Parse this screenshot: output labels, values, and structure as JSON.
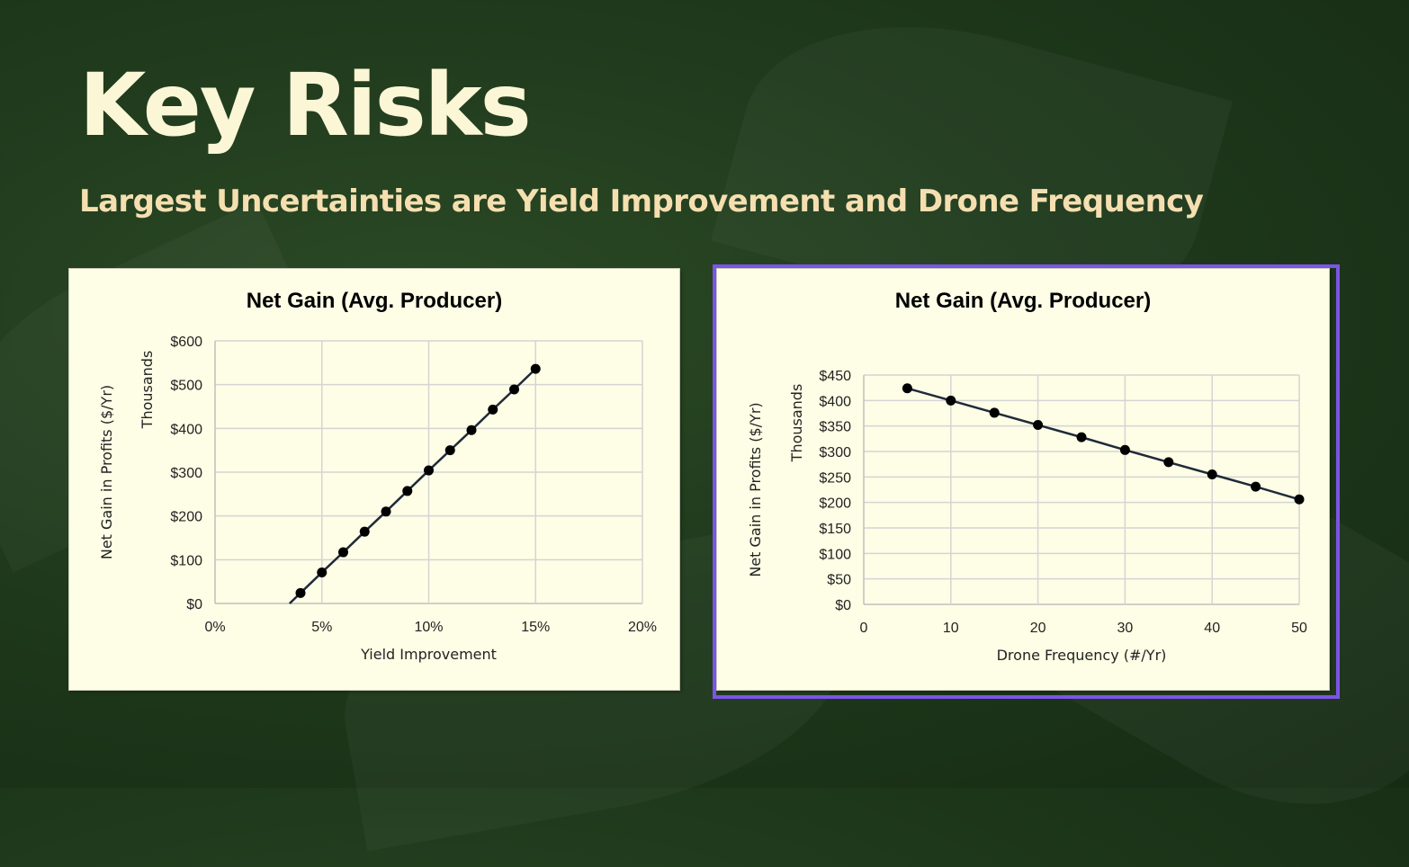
{
  "slide": {
    "title": "Key Risks",
    "subtitle": "Largest Uncertainties are Yield Improvement and Drone Frequency"
  },
  "colors": {
    "background": "#1f3a1c",
    "title": "#fbf7d6",
    "subtitle": "#f5dfb0",
    "chart_bg": "#fefee6",
    "line": "#1f2a3a",
    "marker": "#000000",
    "selection": "#7b55e6"
  },
  "chart_data": [
    {
      "type": "line",
      "title": "Net Gain (Avg. Producer)",
      "xlabel": "Yield Improvement",
      "ylabel": "Net Gain in Profits ($/Yr)",
      "y_unit_label": "Thousands",
      "xlim": [
        0,
        20
      ],
      "ylim": [
        0,
        600
      ],
      "x_ticks": [
        "0%",
        "5%",
        "10%",
        "15%",
        "20%"
      ],
      "y_ticks": [
        "$0",
        "$100",
        "$200",
        "$300",
        "$400",
        "$500",
        "$600"
      ],
      "grid": true,
      "line_extends_to_axis": true,
      "x": [
        4,
        5,
        6,
        7,
        8,
        9,
        10,
        11,
        12,
        13,
        14,
        15
      ],
      "values": [
        24,
        71,
        117,
        164,
        210,
        257,
        304,
        350,
        396,
        443,
        489,
        536
      ]
    },
    {
      "type": "line",
      "title": "Net Gain (Avg. Producer)",
      "xlabel": "Drone Frequency (#/Yr)",
      "ylabel": "Net Gain in Profits ($/Yr)",
      "y_unit_label": "Thousands",
      "xlim": [
        0,
        50
      ],
      "ylim": [
        0,
        450
      ],
      "x_ticks": [
        "0",
        "10",
        "20",
        "30",
        "40",
        "50"
      ],
      "y_ticks": [
        "$0",
        "$50",
        "$100",
        "$150",
        "$200",
        "$250",
        "$300",
        "$350",
        "$400",
        "$450"
      ],
      "grid": true,
      "selected": true,
      "x": [
        5,
        10,
        15,
        20,
        25,
        30,
        35,
        40,
        45,
        50
      ],
      "values": [
        424,
        400,
        376,
        352,
        328,
        303,
        279,
        255,
        231,
        206
      ]
    }
  ]
}
